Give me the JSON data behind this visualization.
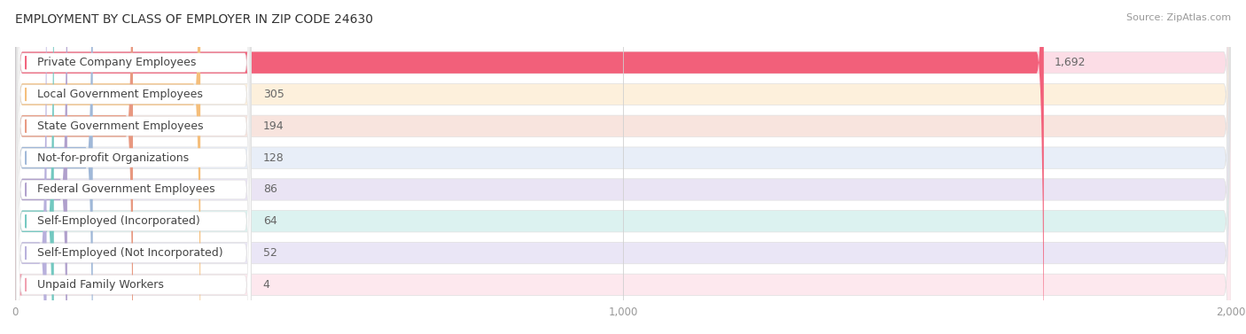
{
  "title": "EMPLOYMENT BY CLASS OF EMPLOYER IN ZIP CODE 24630",
  "source": "Source: ZipAtlas.com",
  "categories": [
    "Private Company Employees",
    "Local Government Employees",
    "State Government Employees",
    "Not-for-profit Organizations",
    "Federal Government Employees",
    "Self-Employed (Incorporated)",
    "Self-Employed (Not Incorporated)",
    "Unpaid Family Workers"
  ],
  "values": [
    1692,
    305,
    194,
    128,
    86,
    64,
    52,
    4
  ],
  "bar_colors": [
    "#F2607A",
    "#F5BE7A",
    "#E89880",
    "#A0B8D8",
    "#B0A0CC",
    "#72C8C0",
    "#B8B0DC",
    "#F0A0B0"
  ],
  "bar_bg_colors": [
    "#FCDDE6",
    "#FDF0DC",
    "#F8E4DE",
    "#E8EEF8",
    "#EAE4F4",
    "#DCF2F0",
    "#EAE6F6",
    "#FDE8EE"
  ],
  "xlim_max": 2000,
  "xticks": [
    0,
    1000,
    2000
  ],
  "title_fontsize": 10,
  "label_fontsize": 9,
  "value_fontsize": 9,
  "source_fontsize": 8
}
